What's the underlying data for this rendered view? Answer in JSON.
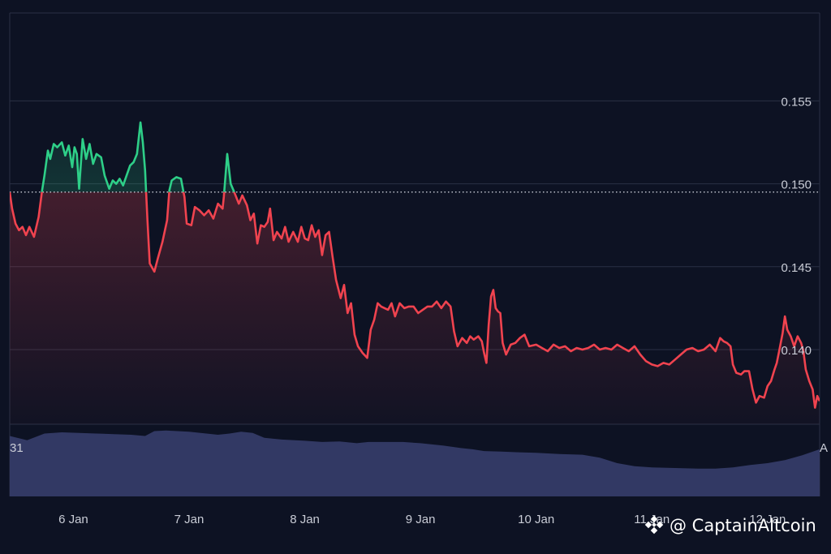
{
  "chart_data": {
    "type": "area",
    "x_unit": "day",
    "x_labels": [
      "6 Jan",
      "7 Jan",
      "8 Jan",
      "9 Jan",
      "10 Jan",
      "11 Jan",
      "12 Jan"
    ],
    "x_label_days": [
      6,
      7,
      8,
      9,
      10,
      11,
      12
    ],
    "xlim": [
      5.45,
      12.45
    ],
    "y_ticks": [
      0.155,
      0.15,
      0.145,
      0.14
    ],
    "y_tick_labels": [
      "0.155",
      "0.150",
      "0.145",
      "0.140"
    ],
    "ylim": [
      0.1355,
      0.1603
    ],
    "baseline": 0.1495,
    "grid": true,
    "colors": {
      "background": "#0d1223",
      "grid": "#2a3044",
      "up": "#2ecf88",
      "down": "#f0434f",
      "baseline": "#c9ccd6",
      "volume": "#353c68"
    },
    "series": [
      {
        "points": [
          [
            5.45,
            0.1495
          ],
          [
            5.47,
            0.1485
          ],
          [
            5.5,
            0.1476
          ],
          [
            5.53,
            0.1472
          ],
          [
            5.56,
            0.1474
          ],
          [
            5.59,
            0.1469
          ],
          [
            5.62,
            0.1474
          ],
          [
            5.66,
            0.1468
          ],
          [
            5.7,
            0.148
          ],
          [
            5.73,
            0.1496
          ],
          [
            5.75,
            0.1505
          ],
          [
            5.78,
            0.152
          ],
          [
            5.8,
            0.1515
          ],
          [
            5.83,
            0.1524
          ],
          [
            5.86,
            0.1522
          ],
          [
            5.9,
            0.1525
          ],
          [
            5.93,
            0.1517
          ],
          [
            5.96,
            0.1523
          ],
          [
            5.99,
            0.151
          ],
          [
            6.01,
            0.1522
          ],
          [
            6.03,
            0.1518
          ],
          [
            6.05,
            0.1497
          ],
          [
            6.08,
            0.1527
          ],
          [
            6.11,
            0.1515
          ],
          [
            6.14,
            0.1524
          ],
          [
            6.17,
            0.1512
          ],
          [
            6.2,
            0.1518
          ],
          [
            6.24,
            0.1516
          ],
          [
            6.27,
            0.1505
          ],
          [
            6.31,
            0.1497
          ],
          [
            6.34,
            0.1502
          ],
          [
            6.37,
            0.15
          ],
          [
            6.4,
            0.1503
          ],
          [
            6.43,
            0.1499
          ],
          [
            6.46,
            0.1505
          ],
          [
            6.49,
            0.1511
          ],
          [
            6.52,
            0.1513
          ],
          [
            6.55,
            0.1518
          ],
          [
            6.58,
            0.1537
          ],
          [
            6.6,
            0.1525
          ],
          [
            6.62,
            0.1508
          ],
          [
            6.64,
            0.1478
          ],
          [
            6.66,
            0.1452
          ],
          [
            6.7,
            0.1447
          ],
          [
            6.73,
            0.1455
          ],
          [
            6.77,
            0.1465
          ],
          [
            6.81,
            0.1478
          ],
          [
            6.83,
            0.1496
          ],
          [
            6.85,
            0.1502
          ],
          [
            6.89,
            0.1504
          ],
          [
            6.93,
            0.1503
          ],
          [
            6.96,
            0.1492
          ],
          [
            6.98,
            0.1476
          ],
          [
            7.02,
            0.1475
          ],
          [
            7.05,
            0.1486
          ],
          [
            7.09,
            0.1484
          ],
          [
            7.13,
            0.1481
          ],
          [
            7.17,
            0.1484
          ],
          [
            7.21,
            0.1479
          ],
          [
            7.25,
            0.1488
          ],
          [
            7.29,
            0.1485
          ],
          [
            7.3,
            0.1492
          ],
          [
            7.33,
            0.1518
          ],
          [
            7.36,
            0.15
          ],
          [
            7.39,
            0.1495
          ],
          [
            7.43,
            0.1488
          ],
          [
            7.46,
            0.1493
          ],
          [
            7.5,
            0.1487
          ],
          [
            7.53,
            0.1478
          ],
          [
            7.56,
            0.1482
          ],
          [
            7.59,
            0.1464
          ],
          [
            7.62,
            0.1475
          ],
          [
            7.65,
            0.1474
          ],
          [
            7.68,
            0.1477
          ],
          [
            7.7,
            0.1485
          ],
          [
            7.73,
            0.1466
          ],
          [
            7.76,
            0.1471
          ],
          [
            7.8,
            0.1467
          ],
          [
            7.83,
            0.1474
          ],
          [
            7.86,
            0.1465
          ],
          [
            7.9,
            0.1471
          ],
          [
            7.94,
            0.1465
          ],
          [
            7.97,
            0.1474
          ],
          [
            8.0,
            0.1467
          ],
          [
            8.03,
            0.1466
          ],
          [
            8.06,
            0.1475
          ],
          [
            8.09,
            0.1468
          ],
          [
            8.12,
            0.1472
          ],
          [
            8.15,
            0.1457
          ],
          [
            8.18,
            0.1469
          ],
          [
            8.21,
            0.1471
          ],
          [
            8.24,
            0.1456
          ],
          [
            8.27,
            0.1442
          ],
          [
            8.31,
            0.1431
          ],
          [
            8.34,
            0.1439
          ],
          [
            8.37,
            0.1422
          ],
          [
            8.4,
            0.1428
          ],
          [
            8.43,
            0.1409
          ],
          [
            8.46,
            0.1402
          ],
          [
            8.5,
            0.1398
          ],
          [
            8.54,
            0.1395
          ],
          [
            8.57,
            0.1412
          ],
          [
            8.6,
            0.1418
          ],
          [
            8.63,
            0.1428
          ],
          [
            8.66,
            0.1426
          ],
          [
            8.69,
            0.1425
          ],
          [
            8.72,
            0.1424
          ],
          [
            8.75,
            0.1428
          ],
          [
            8.78,
            0.142
          ],
          [
            8.82,
            0.1428
          ],
          [
            8.86,
            0.1425
          ],
          [
            8.9,
            0.1426
          ],
          [
            8.94,
            0.1426
          ],
          [
            8.98,
            0.1422
          ],
          [
            9.02,
            0.1424
          ],
          [
            9.06,
            0.1426
          ],
          [
            9.1,
            0.1426
          ],
          [
            9.14,
            0.1429
          ],
          [
            9.18,
            0.1425
          ],
          [
            9.22,
            0.1429
          ],
          [
            9.26,
            0.1426
          ],
          [
            9.29,
            0.1411
          ],
          [
            9.32,
            0.1402
          ],
          [
            9.36,
            0.1407
          ],
          [
            9.4,
            0.1404
          ],
          [
            9.43,
            0.1408
          ],
          [
            9.46,
            0.1406
          ],
          [
            9.5,
            0.1408
          ],
          [
            9.53,
            0.1405
          ],
          [
            9.55,
            0.1398
          ],
          [
            9.57,
            0.1392
          ],
          [
            9.59,
            0.1415
          ],
          [
            9.61,
            0.1432
          ],
          [
            9.63,
            0.1436
          ],
          [
            9.65,
            0.1425
          ],
          [
            9.67,
            0.1423
          ],
          [
            9.69,
            0.1422
          ],
          [
            9.71,
            0.1404
          ],
          [
            9.74,
            0.1397
          ],
          [
            9.78,
            0.1403
          ],
          [
            9.82,
            0.1404
          ],
          [
            9.86,
            0.1407
          ],
          [
            9.9,
            0.1409
          ],
          [
            9.94,
            0.1402
          ],
          [
            10.0,
            0.1403
          ],
          [
            10.05,
            0.1401
          ],
          [
            10.1,
            0.1399
          ],
          [
            10.15,
            0.1403
          ],
          [
            10.2,
            0.1401
          ],
          [
            10.25,
            0.1402
          ],
          [
            10.3,
            0.1399
          ],
          [
            10.35,
            0.1401
          ],
          [
            10.4,
            0.14
          ],
          [
            10.45,
            0.1401
          ],
          [
            10.5,
            0.1403
          ],
          [
            10.55,
            0.14
          ],
          [
            10.6,
            0.1401
          ],
          [
            10.65,
            0.14
          ],
          [
            10.7,
            0.1403
          ],
          [
            10.75,
            0.1401
          ],
          [
            10.8,
            0.1399
          ],
          [
            10.85,
            0.1402
          ],
          [
            10.9,
            0.1397
          ],
          [
            10.95,
            0.1393
          ],
          [
            11.0,
            0.1391
          ],
          [
            11.05,
            0.139
          ],
          [
            11.1,
            0.1392
          ],
          [
            11.15,
            0.1391
          ],
          [
            11.2,
            0.1394
          ],
          [
            11.25,
            0.1397
          ],
          [
            11.3,
            0.14
          ],
          [
            11.35,
            0.1401
          ],
          [
            11.4,
            0.1399
          ],
          [
            11.45,
            0.14
          ],
          [
            11.5,
            0.1403
          ],
          [
            11.55,
            0.1399
          ],
          [
            11.59,
            0.1407
          ],
          [
            11.62,
            0.1405
          ],
          [
            11.65,
            0.1404
          ],
          [
            11.68,
            0.1402
          ],
          [
            11.7,
            0.1391
          ],
          [
            11.73,
            0.1386
          ],
          [
            11.77,
            0.1385
          ],
          [
            11.8,
            0.1387
          ],
          [
            11.84,
            0.1387
          ],
          [
            11.87,
            0.1376
          ],
          [
            11.9,
            0.1368
          ],
          [
            11.93,
            0.1372
          ],
          [
            11.97,
            0.1371
          ],
          [
            12.0,
            0.1378
          ],
          [
            12.03,
            0.1381
          ],
          [
            12.06,
            0.1388
          ],
          [
            12.08,
            0.1392
          ],
          [
            12.1,
            0.1399
          ],
          [
            12.13,
            0.141
          ],
          [
            12.15,
            0.142
          ],
          [
            12.17,
            0.1412
          ],
          [
            12.2,
            0.1408
          ],
          [
            12.23,
            0.1402
          ],
          [
            12.26,
            0.1408
          ],
          [
            12.29,
            0.1404
          ],
          [
            12.31,
            0.1399
          ],
          [
            12.33,
            0.1388
          ],
          [
            12.36,
            0.1381
          ],
          [
            12.39,
            0.1376
          ],
          [
            12.41,
            0.1365
          ],
          [
            12.43,
            0.1372
          ],
          [
            12.45,
            0.1369
          ]
        ]
      }
    ],
    "volume": {
      "points": [
        [
          5.45,
          1
        ],
        [
          5.6,
          0.93
        ],
        [
          5.75,
          1.04
        ],
        [
          5.9,
          1.06
        ],
        [
          6.05,
          1.05
        ],
        [
          6.2,
          1.04
        ],
        [
          6.35,
          1.03
        ],
        [
          6.5,
          1.02
        ],
        [
          6.62,
          1.0
        ],
        [
          6.7,
          1.08
        ],
        [
          6.8,
          1.09
        ],
        [
          7.0,
          1.07
        ],
        [
          7.15,
          1.04
        ],
        [
          7.25,
          1.02
        ],
        [
          7.35,
          1.04
        ],
        [
          7.45,
          1.07
        ],
        [
          7.55,
          1.05
        ],
        [
          7.65,
          0.97
        ],
        [
          7.8,
          0.94
        ],
        [
          8.0,
          0.92
        ],
        [
          8.15,
          0.9
        ],
        [
          8.3,
          0.91
        ],
        [
          8.45,
          0.88
        ],
        [
          8.55,
          0.9
        ],
        [
          8.65,
          0.9
        ],
        [
          8.85,
          0.9
        ],
        [
          9.0,
          0.88
        ],
        [
          9.2,
          0.84
        ],
        [
          9.35,
          0.8
        ],
        [
          9.45,
          0.78
        ],
        [
          9.55,
          0.75
        ],
        [
          9.7,
          0.74
        ],
        [
          9.85,
          0.73
        ],
        [
          10.0,
          0.72
        ],
        [
          10.2,
          0.7
        ],
        [
          10.4,
          0.69
        ],
        [
          10.55,
          0.64
        ],
        [
          10.7,
          0.55
        ],
        [
          10.85,
          0.5
        ],
        [
          11.0,
          0.48
        ],
        [
          11.2,
          0.47
        ],
        [
          11.4,
          0.46
        ],
        [
          11.55,
          0.46
        ],
        [
          11.7,
          0.48
        ],
        [
          11.85,
          0.52
        ],
        [
          12.0,
          0.55
        ],
        [
          12.15,
          0.6
        ],
        [
          12.3,
          0.68
        ],
        [
          12.45,
          0.78
        ]
      ],
      "left_label": "31",
      "right_label": "A"
    },
    "watermark": "@ CaptainAltcoin"
  }
}
